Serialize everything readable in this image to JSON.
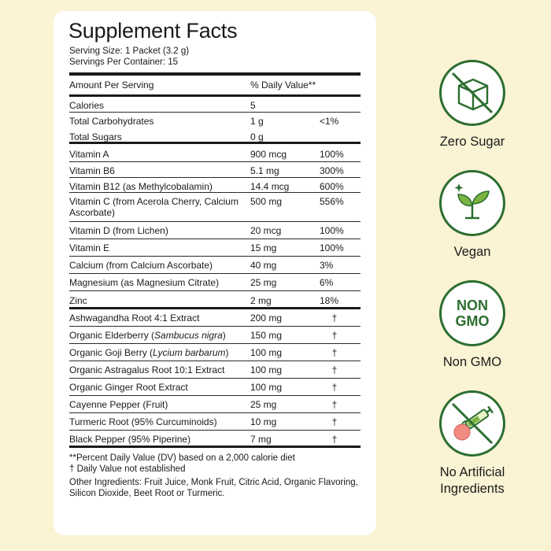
{
  "panel": {
    "title": "Supplement Facts",
    "serving_size": "Serving Size: 1 Packet (3.2 g)",
    "servings_per_container": "Servings Per Container: 15",
    "header": {
      "amount": "Amount Per Serving",
      "dv": "% Daily Value**"
    },
    "rows": [
      {
        "name": "Calories",
        "amount": "5",
        "dv": ""
      },
      {
        "name": "Total Carbohydrates",
        "amount": "1 g",
        "dv": "<1%"
      },
      {
        "name": "Total Sugars",
        "amount": "0 g",
        "dv": ""
      },
      {
        "name": "Vitamin A",
        "amount": "900 mcg",
        "dv": "100%"
      },
      {
        "name": "Vitamin B6",
        "amount": "5.1 mg",
        "dv": "300%"
      },
      {
        "name": "Vitamin B12 (as Methylcobalamin)",
        "amount": "14.4 mcg",
        "dv": "600%"
      },
      {
        "name": "Vitamin C (from Acerola Cherry, Calcium Ascorbate)",
        "amount": "500 mg",
        "dv": "556%"
      },
      {
        "name": "Vitamin D (from Lichen)",
        "amount": "20 mcg",
        "dv": "100%"
      },
      {
        "name": "Vitamin E",
        "amount": "15 mg",
        "dv": "100%"
      },
      {
        "name": "Calcium (from Calcium Ascorbate)",
        "amount": "40 mg",
        "dv": "3%"
      },
      {
        "name": "Magnesium (as Magnesium Citrate)",
        "amount": "25 mg",
        "dv": "6%"
      },
      {
        "name": "Zinc",
        "amount": "2 mg",
        "dv": "18%"
      }
    ],
    "botanicals": [
      {
        "name": "Ashwagandha Root 4:1 Extract",
        "amount": "200 mg",
        "dv": "†"
      },
      {
        "name_pre": "Organic Elderberry (",
        "name_italic": "Sambucus nigra",
        "name_post": ")",
        "amount": "150 mg",
        "dv": "†"
      },
      {
        "name_pre": "Organic Goji Berry (",
        "name_italic": "Lycium barbarum",
        "name_post": ")",
        "amount": "100 mg",
        "dv": "†"
      },
      {
        "name": "Organic Astragalus Root 10:1 Extract",
        "amount": "100 mg",
        "dv": "†"
      },
      {
        "name": "Organic Ginger Root Extract",
        "amount": "100 mg",
        "dv": "†"
      },
      {
        "name": "Cayenne Pepper (Fruit)",
        "amount": "25 mg",
        "dv": "†"
      },
      {
        "name": "Turmeric Root (95% Curcuminoids)",
        "amount": "10 mg",
        "dv": "†"
      },
      {
        "name": "Black Pepper (95% Piperine)",
        "amount": "7 mg",
        "dv": "†"
      }
    ],
    "footnote_dv": "**Percent Daily Value (DV) based on a 2,000 calorie diet",
    "footnote_dagger": "† Daily Value not established",
    "other_ingredients": "Other Ingredients:  Fruit Juice, Monk Fruit, Citric Acid, Organic Flavoring, Silicon Dioxide, Beet Root or Turmeric."
  },
  "badges": [
    {
      "icon": "crossed-sugar-cube-icon",
      "label": "Zero Sugar"
    },
    {
      "icon": "sprout-icon",
      "label": "Vegan"
    },
    {
      "icon": "non-gmo-icon",
      "text": "NON GMO",
      "label": "Non GMO"
    },
    {
      "icon": "crossed-syringe-peach-icon",
      "label": "No Artificial Ingredients"
    }
  ],
  "colors": {
    "background": "#faf3d4",
    "badge_green": "#2c6e2f",
    "leaf_green": "#7cb342",
    "peach": "#f28b82"
  }
}
